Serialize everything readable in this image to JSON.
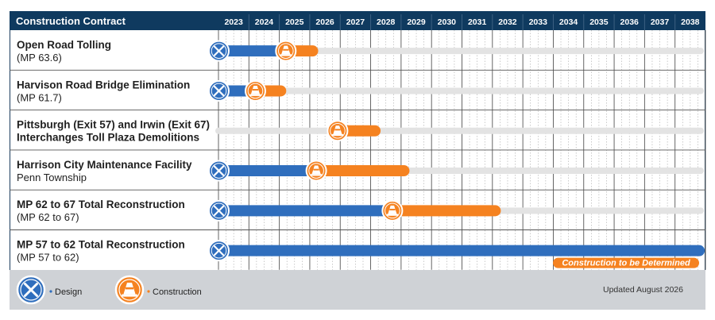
{
  "header": {
    "title": "Construction Contract"
  },
  "colors": {
    "header_bg": "#0f3a5f",
    "header_title": "#56c1e8",
    "design": "#2f6ebd",
    "construction": "#f58220",
    "future_track": "#e3e3e3",
    "footer_bg": "#cfd2d6"
  },
  "chart_data": {
    "type": "gantt",
    "years": [
      "2023",
      "2024",
      "2025",
      "2026",
      "2027",
      "2028",
      "2029",
      "2030",
      "2031",
      "2032",
      "2033",
      "2034",
      "2035",
      "2036",
      "2037",
      "2038"
    ],
    "rows": [
      {
        "title": "Open Road Tolling",
        "subtitle": "(MP 63.6)",
        "design": [
          2023.0,
          2025.2
        ],
        "construction": [
          2025.2,
          2026.25
        ],
        "track_end": 2038.95
      },
      {
        "title": "Harvison Road Bridge Elimination",
        "subtitle": "(MP 61.7)",
        "design": [
          2023.0,
          2024.2
        ],
        "construction": [
          2024.2,
          2025.2
        ],
        "track_end": 2038.95
      },
      {
        "title": "Pittsburgh (Exit 57) and Irwin (Exit 67)",
        "subtitle": "Interchanges Toll Plaza Demolitions",
        "subtitle_bold": true,
        "design": null,
        "construction": [
          2026.9,
          2028.3
        ],
        "track_end": 2038.95
      },
      {
        "title": "Harrison City Maintenance Facility",
        "subtitle": "Penn Township",
        "design": [
          2023.0,
          2026.2
        ],
        "construction": [
          2026.2,
          2029.25
        ],
        "track_end": 2038.95
      },
      {
        "title": "MP 62 to 67 Total Reconstruction",
        "subtitle": "(MP 62 to 67)",
        "design": [
          2023.0,
          2028.7
        ],
        "construction": [
          2028.7,
          2032.25
        ],
        "track_end": 2038.95
      },
      {
        "title": "MP 57 to 62 Total Reconstruction",
        "subtitle": "(MP 57 to 62)",
        "design": [
          2023.0,
          2038.95
        ],
        "construction": null,
        "note": "Construction to be Determined",
        "track_end": 2038.95
      }
    ]
  },
  "legend": {
    "design_label": "Design",
    "construction_label": "Construction",
    "design_icon": "design-tools-icon",
    "construction_icon": "traffic-cone-icon"
  },
  "footer": {
    "updated": "Updated August 2026"
  }
}
